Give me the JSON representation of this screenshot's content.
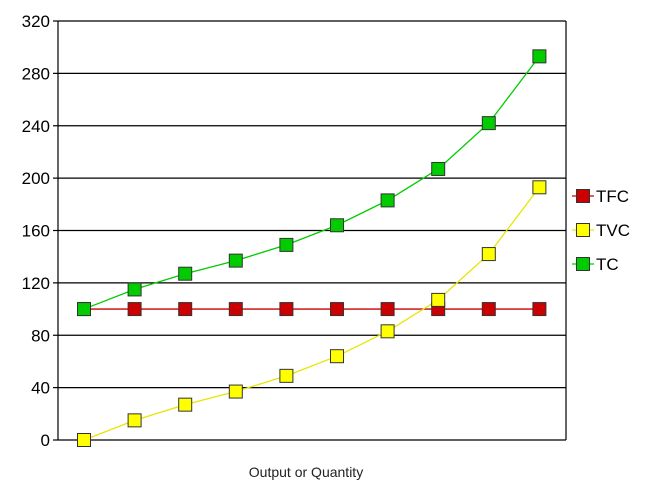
{
  "chart_data": {
    "type": "line",
    "title": "",
    "xlabel": "Output or Quantity",
    "ylabel": "",
    "ylim": [
      0,
      320
    ],
    "yticks": [
      0,
      40,
      80,
      120,
      160,
      200,
      240,
      280,
      320
    ],
    "grid": true,
    "legend_position": "right",
    "x": [
      0,
      1,
      2,
      3,
      4,
      5,
      6,
      7,
      8,
      9
    ],
    "series": [
      {
        "name": "TFC",
        "color": "#cc0000",
        "line_color": "#cc0000",
        "values": [
          100,
          100,
          100,
          100,
          100,
          100,
          100,
          100,
          100,
          100
        ]
      },
      {
        "name": "TVC",
        "color": "#ffff00",
        "line_color": "#e6e600",
        "values": [
          0,
          15,
          27,
          37,
          49,
          64,
          83,
          107,
          142,
          193
        ]
      },
      {
        "name": "TC",
        "color": "#00cc00",
        "line_color": "#00cc00",
        "values": [
          100,
          115,
          127,
          137,
          149,
          164,
          183,
          207,
          242,
          293
        ]
      }
    ]
  }
}
